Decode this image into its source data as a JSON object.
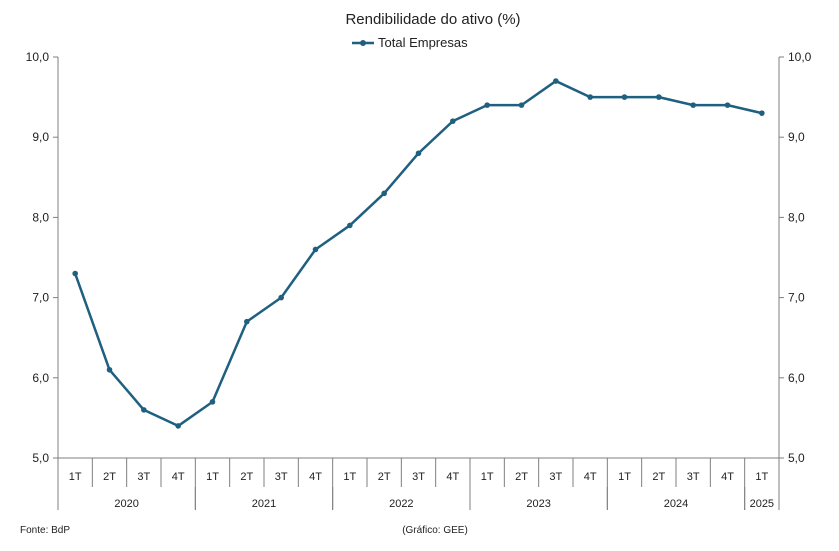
{
  "chart_data": {
    "type": "line",
    "title": "Rendibilidade do ativo (%)",
    "ylim": [
      5.0,
      10.0
    ],
    "yticks": [
      "5,0",
      "6,0",
      "7,0",
      "8,0",
      "9,0",
      "10,0"
    ],
    "grid": false,
    "legend_position": "top-center",
    "categories": [
      "1T",
      "2T",
      "3T",
      "4T",
      "1T",
      "2T",
      "3T",
      "4T",
      "1T",
      "2T",
      "3T",
      "4T",
      "1T",
      "2T",
      "3T",
      "4T",
      "1T",
      "2T",
      "3T",
      "4T",
      "1T"
    ],
    "years": [
      "2020",
      "2021",
      "2022",
      "2023",
      "2024",
      "2025"
    ],
    "year_spans": [
      4,
      4,
      4,
      4,
      4,
      1
    ],
    "series": [
      {
        "name": "Total Empresas",
        "color": "#1f5f7f",
        "values": [
          7.3,
          6.1,
          5.6,
          5.4,
          5.7,
          6.7,
          7.0,
          7.6,
          7.9,
          8.3,
          8.8,
          9.2,
          9.4,
          9.4,
          9.7,
          9.5,
          9.5,
          9.5,
          9.4,
          9.4,
          9.3
        ]
      }
    ],
    "footnote_left": "Fonte: BdP",
    "footnote_center": "(Gráfico: GEE)"
  }
}
